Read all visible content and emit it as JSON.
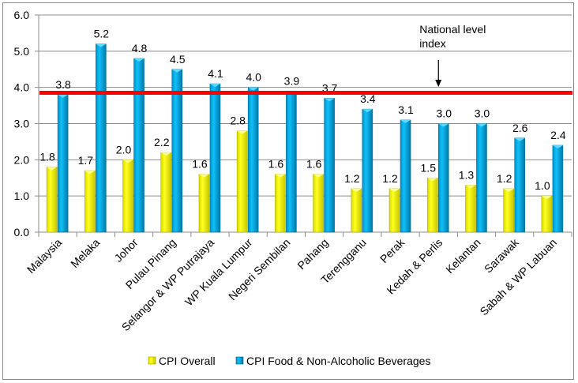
{
  "chart_data": {
    "type": "bar",
    "title": "",
    "xlabel": "",
    "ylabel": "",
    "ylim": [
      0,
      6
    ],
    "yticks": [
      "0.0",
      "1.0",
      "2.0",
      "3.0",
      "4.0",
      "5.0",
      "6.0"
    ],
    "grid": true,
    "legend_position": "bottom",
    "categories": [
      "Malaysia",
      "Melaka",
      "Johor",
      "Pulau Pinang",
      "Selangor & WP Putrajaya",
      "WP Kuala Lumpur",
      "Negeri Sembilan",
      "Pahang",
      "Terengganu",
      "Perak",
      "Kedah & Perlis",
      "Kelantan",
      "Sarawak",
      "Sabah & WP Labuan"
    ],
    "series": [
      {
        "name": "CPI Overall",
        "color": "#f2f200",
        "values": [
          1.8,
          1.7,
          2.0,
          2.2,
          1.6,
          2.8,
          1.6,
          1.6,
          1.2,
          1.2,
          1.5,
          1.3,
          1.2,
          1.0
        ]
      },
      {
        "name": "CPI Food & Non-Alcoholic Beverages",
        "color": "#00b0f0",
        "values": [
          3.8,
          5.2,
          4.8,
          4.5,
          4.1,
          4.0,
          3.9,
          3.7,
          3.4,
          3.1,
          3.0,
          3.0,
          2.6,
          2.4
        ]
      }
    ],
    "reference_line": {
      "value": 3.85,
      "color": "#ff0000",
      "label": "National level index"
    },
    "annotation": {
      "lines": [
        "National level",
        "index"
      ],
      "arrow_target_category": "Kedah & Perlis"
    }
  }
}
